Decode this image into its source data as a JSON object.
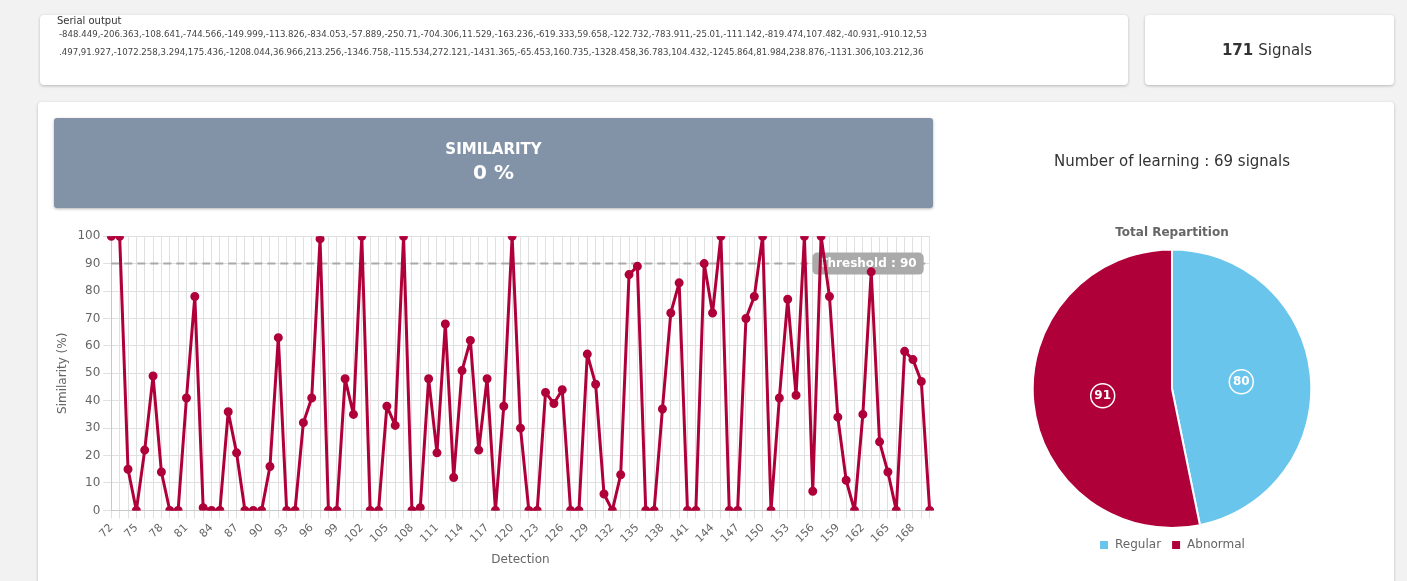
{
  "chart_data": [
    {
      "type": "other",
      "title": "Serial output",
      "annotations": [
        "-848.449,-206.363,-108.641,-744.566,-149.999,-113.826,-834.053,-57.889,-250.71,-704.306,11.529,-163.236,-619.333,59.658,-122.732,-783.911,-25.01,-111.142,-819.474,107.482,-40.931,-910.12,53",
        ".497,91.927,-1072.258,3.294,175.436,-1208.044,36.966,213.256,-1346.758,-115.534,272.121,-1431.365,-65.453,160.735,-1328.458,36.783,104.432,-1245.864,81.984,238.876,-1131.306,103.212,36"
      ]
    },
    {
      "type": "other",
      "annotations": [
        "171",
        "Signals"
      ]
    },
    {
      "type": "line",
      "title": "SIMILARITY",
      "subtitle": "0 %",
      "xlabel": "Detection",
      "ylabel": "Similarity (%)",
      "categories": [
        "72",
        null,
        null,
        "75",
        null,
        null,
        "78",
        null,
        null,
        "81",
        null,
        null,
        "84",
        null,
        null,
        "87",
        null,
        null,
        "90",
        null,
        null,
        "93",
        null,
        null,
        "96",
        null,
        null,
        "99",
        null,
        null,
        "102",
        null,
        null,
        "105",
        null,
        null,
        "108",
        null,
        null,
        "111",
        null,
        null,
        "114",
        null,
        null,
        "117",
        null,
        null,
        "120",
        null,
        null,
        "123",
        null,
        null,
        "126",
        null,
        null,
        "129",
        null,
        null,
        "132",
        null,
        null,
        "135",
        null,
        null,
        "138",
        null,
        null,
        "141",
        null,
        null,
        "144",
        null,
        null,
        "147",
        null,
        null,
        "150",
        null,
        null,
        "153",
        null,
        null,
        "156",
        null,
        null,
        "159",
        null,
        null,
        "162",
        null,
        null,
        "165",
        null,
        null,
        "168",
        null,
        null
      ],
      "series": [
        {
          "color": "#b0003a",
          "values": [
            100,
            100,
            15,
            0,
            22,
            49,
            14,
            0,
            0,
            41,
            78,
            1,
            0,
            0,
            36,
            21,
            0,
            0,
            0,
            16,
            63,
            0,
            0,
            32,
            41,
            99,
            0,
            0,
            48,
            35,
            100,
            0,
            0,
            38,
            31,
            100,
            0,
            1,
            48,
            21,
            68,
            12,
            51,
            62,
            22,
            48,
            0,
            38,
            100,
            30,
            0,
            0,
            43,
            39,
            44,
            0,
            0,
            57,
            46,
            6,
            0,
            13,
            86,
            89,
            0,
            0,
            37,
            72,
            83,
            0,
            0,
            90,
            72,
            100,
            0,
            0,
            70,
            78,
            100,
            0,
            41,
            77,
            42,
            100,
            7,
            100,
            78,
            34,
            11,
            0,
            35,
            87,
            25,
            14,
            0,
            58,
            55,
            47,
            0
          ]
        }
      ],
      "ylim": [
        0,
        100
      ],
      "yticks": [
        0,
        10,
        20,
        30,
        40,
        50,
        60,
        70,
        80,
        90,
        100
      ],
      "grid": true,
      "marker": "circle",
      "line_style": "solid",
      "ref_lines": [
        {
          "axis": "y",
          "value": 90,
          "label": "Threshold : 90",
          "color": "#aaaaaa",
          "line_style": "dashed"
        }
      ]
    },
    {
      "type": "pie",
      "title": "Total Repartition",
      "subtitle": "Number of learning : 69 signals",
      "categories": [
        "Regular",
        "Abnormal"
      ],
      "values": [
        80,
        91
      ],
      "colors": [
        "#69c5ec",
        "#b0003a"
      ],
      "data_labels": true,
      "legend": "bottom"
    }
  ]
}
